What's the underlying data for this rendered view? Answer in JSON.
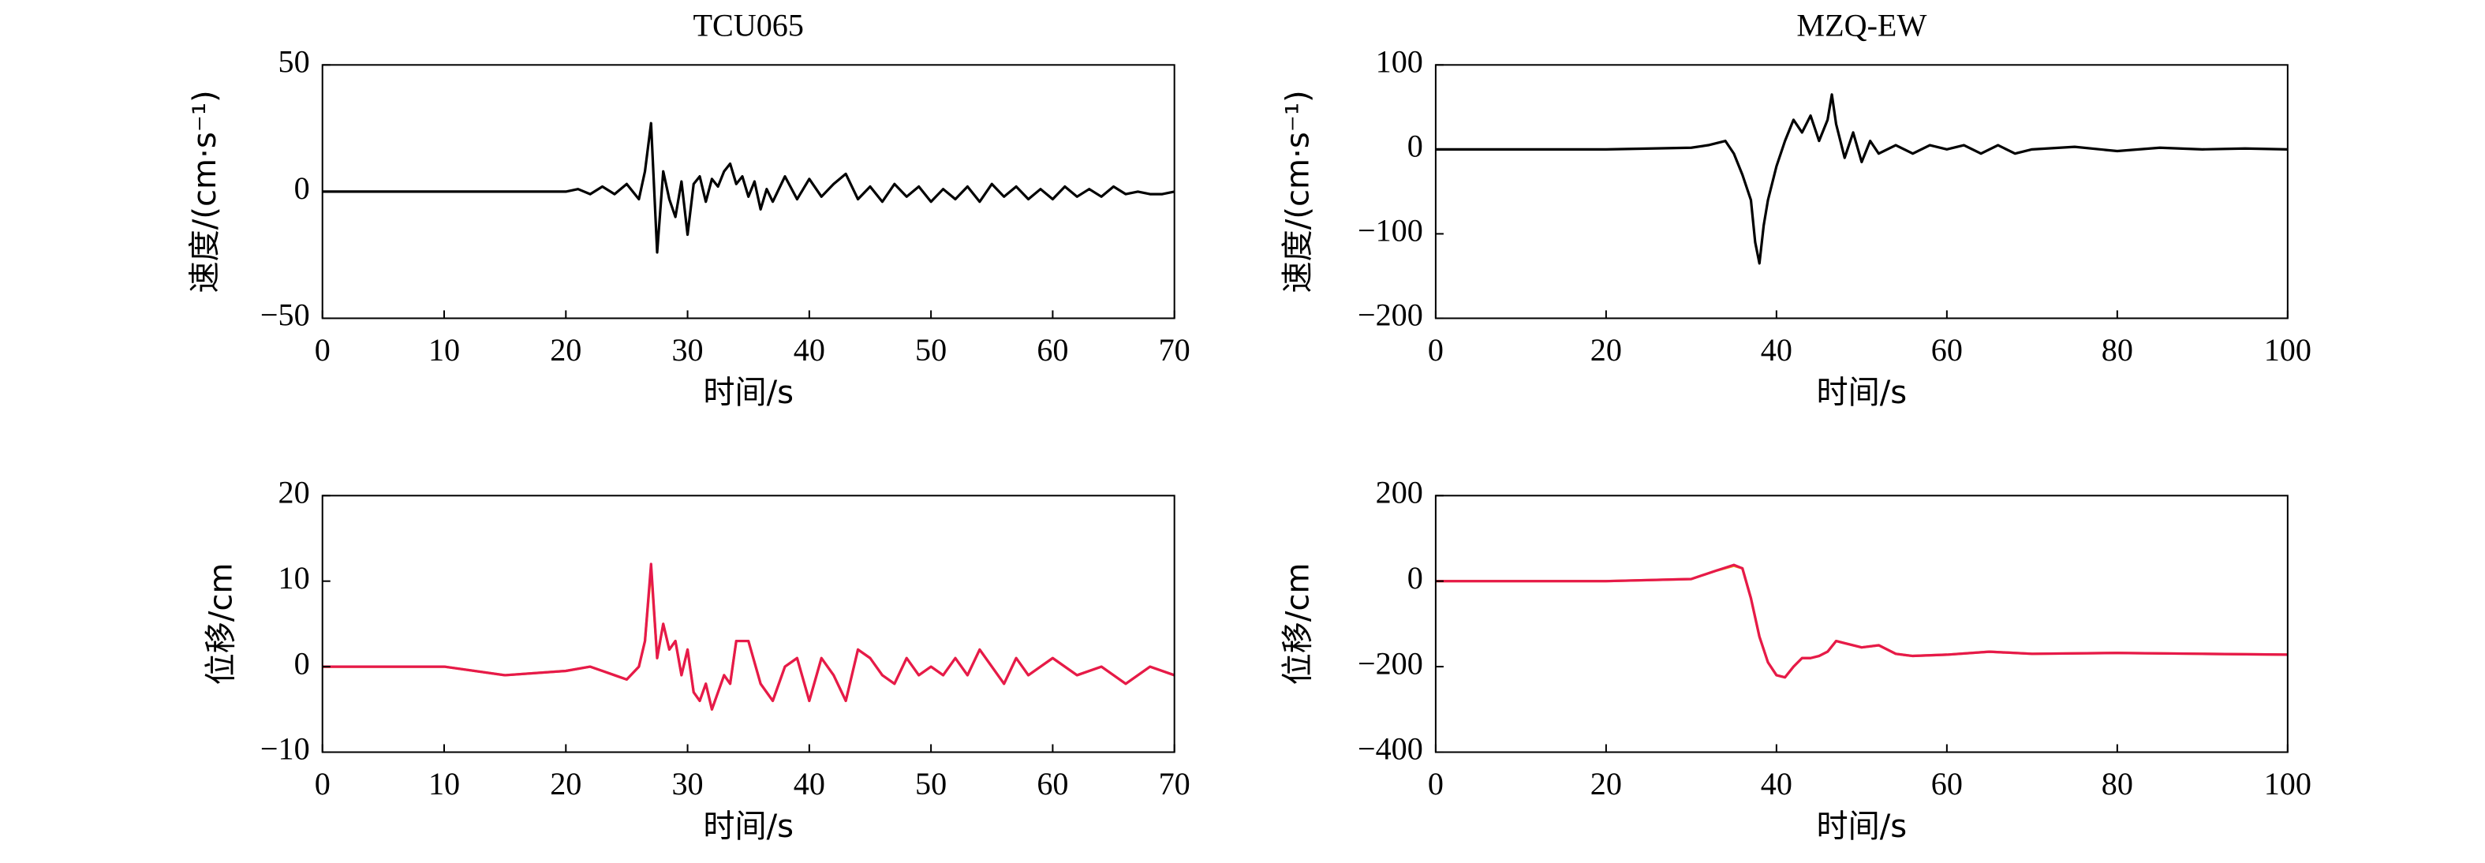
{
  "chart_data": [
    {
      "type": "line",
      "title": "TCU065",
      "xlabel": "时间/s",
      "ylabel": "速度/(cm·s⁻¹)",
      "x": [
        0,
        5,
        10,
        15,
        20,
        21,
        22,
        23,
        24,
        25,
        26,
        26.5,
        27,
        27.5,
        28,
        28.5,
        29,
        29.5,
        30,
        30.5,
        31,
        31.5,
        32,
        32.5,
        33,
        33.5,
        34,
        34.5,
        35,
        35.5,
        36,
        36.5,
        37,
        38,
        39,
        40,
        41,
        42,
        43,
        44,
        45,
        46,
        47,
        48,
        49,
        50,
        51,
        52,
        53,
        54,
        55,
        56,
        57,
        58,
        59,
        60,
        61,
        62,
        63,
        64,
        65,
        66,
        67,
        68,
        69,
        70
      ],
      "series": [
        {
          "color": "#000000",
          "values": [
            0,
            0,
            0,
            0,
            0,
            1,
            -1,
            2,
            -1,
            3,
            -3,
            8,
            27,
            -24,
            8,
            -3,
            -10,
            4,
            -17,
            3,
            6,
            -4,
            5,
            2,
            8,
            11,
            3,
            6,
            -2,
            4,
            -7,
            1,
            -4,
            6,
            -3,
            5,
            -2,
            3,
            7,
            -3,
            2,
            -4,
            3,
            -2,
            2,
            -4,
            1,
            -3,
            2,
            -4,
            3,
            -2,
            2,
            -3,
            1,
            -3,
            2,
            -2,
            1,
            -2,
            2,
            -1,
            0,
            -1,
            -1,
            0
          ]
        }
      ],
      "xlim": [
        0,
        70
      ],
      "ylim": [
        -50,
        50
      ],
      "xticks": [
        0,
        10,
        20,
        30,
        40,
        50,
        60,
        70
      ],
      "yticks": [
        {
          "value": -50,
          "label": "−50"
        },
        0,
        50
      ]
    },
    {
      "type": "line",
      "title": "MZQ-EW",
      "xlabel": "时间/s",
      "ylabel": "速度/(cm·s⁻¹)",
      "x": [
        0,
        10,
        20,
        30,
        32,
        34,
        35,
        36,
        37,
        37.5,
        38,
        38.5,
        39,
        40,
        41,
        42,
        43,
        44,
        45,
        46,
        46.5,
        47,
        48,
        49,
        50,
        51,
        52,
        54,
        56,
        58,
        60,
        62,
        64,
        66,
        68,
        70,
        75,
        80,
        85,
        90,
        95,
        100
      ],
      "series": [
        {
          "color": "#000000",
          "values": [
            0,
            0,
            0,
            2,
            5,
            10,
            -5,
            -30,
            -60,
            -110,
            -135,
            -90,
            -60,
            -20,
            10,
            35,
            20,
            40,
            10,
            35,
            65,
            30,
            -10,
            20,
            -15,
            10,
            -5,
            5,
            -5,
            5,
            0,
            5,
            -5,
            5,
            -5,
            0,
            3,
            -2,
            2,
            0,
            1,
            0
          ]
        }
      ],
      "xlim": [
        0,
        100
      ],
      "ylim": [
        -200,
        100
      ],
      "xticks": [
        0,
        20,
        40,
        60,
        80,
        100
      ],
      "yticks": [
        {
          "value": -200,
          "label": "−200"
        },
        {
          "value": -100,
          "label": "−100"
        },
        0,
        100
      ]
    },
    {
      "type": "line",
      "xlabel": "时间/s",
      "ylabel": "位移/cm",
      "x": [
        0,
        5,
        10,
        15,
        20,
        22,
        24,
        25,
        26,
        26.5,
        27,
        27.5,
        28,
        28.5,
        29,
        29.5,
        30,
        30.5,
        31,
        31.5,
        32,
        32.5,
        33,
        33.5,
        34,
        35,
        36,
        37,
        38,
        39,
        40,
        41,
        42,
        43,
        44,
        45,
        46,
        47,
        48,
        49,
        50,
        51,
        52,
        53,
        54,
        55,
        56,
        57,
        58,
        59,
        60,
        62,
        64,
        66,
        68,
        70
      ],
      "series": [
        {
          "color": "#f39c12",
          "values": [
            0,
            0,
            0,
            -1,
            -0.5,
            0,
            -1,
            -1.5,
            0,
            3,
            11.5,
            1,
            5,
            2,
            3,
            -1,
            2,
            -3,
            -4,
            -2,
            -5,
            -3,
            -1,
            -2,
            3,
            3,
            -2,
            -4,
            0,
            1,
            -4,
            1,
            -1,
            -4,
            2,
            1,
            -1,
            -2,
            1,
            -1,
            0,
            -1,
            1,
            -1,
            2,
            0,
            -2,
            1,
            -1,
            0,
            1,
            -1,
            0,
            -2,
            0,
            -1
          ]
        },
        {
          "color": "#e6194b",
          "values": [
            0,
            0,
            0,
            -1,
            -0.5,
            0,
            -1,
            -1.5,
            0,
            3,
            12,
            1,
            5,
            2,
            3,
            -1,
            2,
            -3,
            -4,
            -2,
            -5,
            -3,
            -1,
            -2,
            3,
            3,
            -2,
            -4,
            0,
            1,
            -4,
            1,
            -1,
            -4,
            2,
            1,
            -1,
            -2,
            1,
            -1,
            0,
            -1,
            1,
            -1,
            2,
            0,
            -2,
            1,
            -1,
            0,
            1,
            -1,
            0,
            -2,
            0,
            -1
          ]
        }
      ],
      "xlim": [
        0,
        70
      ],
      "ylim": [
        -10,
        20
      ],
      "xticks": [
        0,
        10,
        20,
        30,
        40,
        50,
        60,
        70
      ],
      "yticks": [
        {
          "value": -10,
          "label": "−10"
        },
        0,
        10,
        20
      ]
    },
    {
      "type": "line",
      "xlabel": "时间/s",
      "ylabel": "位移/cm",
      "x": [
        0,
        10,
        20,
        30,
        33,
        35,
        36,
        37,
        38,
        39,
        40,
        41,
        42,
        43,
        44,
        45,
        46,
        47,
        48,
        50,
        52,
        54,
        56,
        60,
        65,
        70,
        80,
        90,
        100
      ],
      "series": [
        {
          "color": "#f39c12",
          "values": [
            0,
            0,
            0,
            5,
            25,
            36,
            30,
            -40,
            -130,
            -190,
            -220,
            -225,
            -200,
            -180,
            -180,
            -175,
            -165,
            -140,
            -145,
            -155,
            -150,
            -170,
            -175,
            -172,
            -165,
            -170,
            -168,
            -170,
            -172
          ]
        },
        {
          "color": "#e6194b",
          "values": [
            0,
            0,
            0,
            5,
            25,
            38,
            30,
            -40,
            -130,
            -190,
            -220,
            -225,
            -200,
            -180,
            -180,
            -175,
            -165,
            -140,
            -145,
            -155,
            -150,
            -170,
            -175,
            -172,
            -165,
            -170,
            -168,
            -170,
            -172
          ]
        }
      ],
      "xlim": [
        0,
        100
      ],
      "ylim": [
        -400,
        200
      ],
      "xticks": [
        0,
        20,
        40,
        60,
        80,
        100
      ],
      "yticks": [
        {
          "value": -400,
          "label": "−400"
        },
        {
          "value": -200,
          "label": "−200"
        },
        0,
        200
      ]
    }
  ]
}
